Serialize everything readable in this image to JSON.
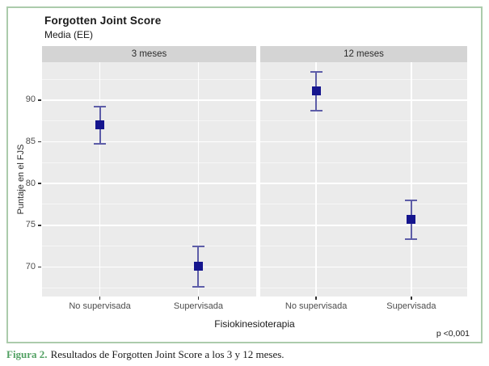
{
  "figure": {
    "title": "Forgotten Joint Score",
    "subtitle": "Media (EE)",
    "p_value": "p <0,001",
    "caption": {
      "label": "Figura 2.",
      "text": "Resultados de Forgotten Joint Score a los 3 y 12 meses."
    }
  },
  "chart_data": {
    "type": "scatter",
    "title": "Forgotten Joint Score",
    "subtitle": "Media (EE)",
    "xlabel": "Fisiokinesioterapia",
    "ylabel": "Puntaje en el FJS",
    "ylim": [
      66.5,
      94.6
    ],
    "yticks": [
      70,
      75,
      80,
      85,
      90
    ],
    "yticks_minor": [
      67.5,
      72.5,
      77.5,
      82.5,
      87.5,
      92.5
    ],
    "grid": true,
    "legend": "none",
    "error_bars": "mean ± EE",
    "facets": [
      {
        "label": "3 meses",
        "categories": [
          "No supervisada",
          "Supervisada"
        ],
        "points": [
          {
            "category": "No supervisada",
            "mean": 87.0,
            "low": 84.8,
            "high": 89.2
          },
          {
            "category": "Supervisada",
            "mean": 70.1,
            "low": 67.6,
            "high": 72.5
          }
        ]
      },
      {
        "label": "12 meses",
        "categories": [
          "No supervisada",
          "Supervisada"
        ],
        "points": [
          {
            "category": "No supervisada",
            "mean": 91.1,
            "low": 88.7,
            "high": 93.4
          },
          {
            "category": "Supervisada",
            "mean": 75.7,
            "low": 73.3,
            "high": 78.0
          }
        ]
      }
    ],
    "annotation": "p <0,001",
    "colors": {
      "marker": "#15158e",
      "errorbar": "#5d5da8",
      "panel_bg": "#ebebeb",
      "strip_bg": "#d4d4d4",
      "grid": "#ffffff",
      "border_green": "#abcbab",
      "caption_green": "#52a163",
      "axis_text": "#4d4d4d"
    }
  }
}
